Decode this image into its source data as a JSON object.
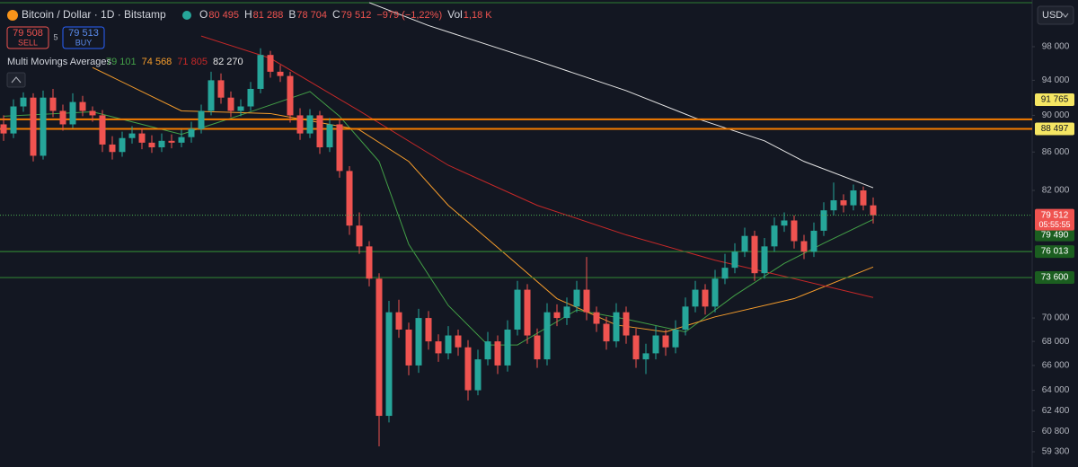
{
  "header": {
    "symbol": "Bitcoin / Dollar · 1D · Bitstamp",
    "ohlc": [
      {
        "key": "O",
        "value": "80 495"
      },
      {
        "key": "H",
        "value": "81 288"
      },
      {
        "key": "B",
        "value": "78 704"
      },
      {
        "key": "C",
        "value": "79 512"
      }
    ],
    "change": "−979 (−1,22%)",
    "volume_key": "Vol",
    "volume": "1,18 K",
    "sell": {
      "price": "79 508",
      "label": "SELL"
    },
    "spread": "5",
    "buy": {
      "price": "79 513",
      "label": "BUY"
    },
    "currency": "USD"
  },
  "chart_data": {
    "type": "candlestick",
    "log_scale": true,
    "up_color": "#26a69a",
    "down_color": "#ef5350",
    "ylim": [
      58190,
      103840
    ],
    "yticks": [
      {
        "value": 98000,
        "label": "98 000"
      },
      {
        "value": 94000,
        "label": "94 000"
      },
      {
        "value": 90000,
        "label": "90 000"
      },
      {
        "value": 86000,
        "label": "86 000"
      },
      {
        "value": 82000,
        "label": "82 000"
      },
      {
        "value": 70000,
        "label": "70 000"
      },
      {
        "value": 68000,
        "label": "68 000"
      },
      {
        "value": 66000,
        "label": "66 000"
      },
      {
        "value": 64000,
        "label": "64 000"
      },
      {
        "value": 62400,
        "label": "62 400"
      },
      {
        "value": 60800,
        "label": "60 800"
      },
      {
        "value": 59300,
        "label": "59 300"
      }
    ],
    "open": [
      89000,
      88000,
      91000,
      92000,
      85600,
      92000,
      90500,
      89000,
      91500,
      90500,
      90000,
      86800,
      86000,
      87500,
      88000,
      87000,
      86500,
      87200,
      87000,
      87600,
      88500,
      90500,
      94000,
      92000,
      90500,
      91000,
      93000,
      97000,
      95000,
      94500,
      90000,
      88000,
      90000,
      86500,
      89000,
      84000,
      78500,
      76500,
      73500,
      62000,
      70500,
      69000,
      66000,
      70000,
      68000,
      67000,
      68500,
      67500,
      64000,
      66500,
      68000,
      66000,
      69000,
      72500,
      68500,
      66500,
      70500,
      70000,
      71000,
      72500,
      70500,
      69500,
      68000,
      70500,
      68500,
      66500,
      67000,
      68500,
      67500,
      69000,
      71000,
      72500,
      71000,
      73500,
      74500,
      76000,
      77500,
      74000,
      76500,
      78500,
      79000,
      77000,
      76000,
      78000,
      80000,
      81000,
      80500,
      82000,
      80495
    ],
    "high": [
      90000,
      91800,
      92600,
      92500,
      92800,
      93000,
      91200,
      92500,
      92200,
      91000,
      90600,
      87700,
      88200,
      88800,
      88600,
      87800,
      88000,
      87900,
      88400,
      89300,
      91200,
      95000,
      94800,
      92700,
      91800,
      93800,
      97800,
      97500,
      95800,
      95000,
      90800,
      90700,
      90500,
      89700,
      89600,
      84500,
      79800,
      77000,
      74000,
      71500,
      71600,
      69600,
      70800,
      70600,
      68600,
      69300,
      69000,
      68100,
      67300,
      68800,
      68500,
      69800,
      73300,
      73000,
      69100,
      71300,
      71200,
      71800,
      73300,
      75500,
      71000,
      70100,
      71300,
      71000,
      69100,
      67800,
      69300,
      69000,
      69800,
      71800,
      73300,
      73000,
      74300,
      75800,
      76800,
      78300,
      78000,
      77300,
      79300,
      79800,
      79500,
      77600,
      78800,
      80800,
      82800,
      81600,
      82600,
      82400,
      81288
    ],
    "low": [
      87200,
      87500,
      90400,
      85000,
      85200,
      89800,
      88300,
      88600,
      89900,
      89300,
      86000,
      85200,
      85500,
      86900,
      86300,
      85900,
      86000,
      86400,
      86500,
      87000,
      88000,
      90000,
      91300,
      89800,
      89900,
      90500,
      92500,
      94300,
      93800,
      89200,
      87300,
      87500,
      85800,
      86000,
      83300,
      77600,
      75800,
      72800,
      59700,
      61500,
      68300,
      65200,
      65400,
      67300,
      66300,
      66500,
      66800,
      63200,
      63600,
      66000,
      65300,
      65500,
      68500,
      67800,
      65800,
      66000,
      69300,
      69400,
      70500,
      69800,
      68800,
      67300,
      67500,
      67800,
      65800,
      65300,
      66500,
      66800,
      67000,
      68500,
      70500,
      70300,
      70500,
      73000,
      74000,
      75500,
      73300,
      73500,
      76000,
      77900,
      76300,
      75300,
      75500,
      77500,
      79500,
      79800,
      80000,
      80000,
      78704
    ],
    "close": [
      88000,
      91000,
      92000,
      85600,
      92000,
      90500,
      89000,
      91500,
      90500,
      90000,
      86800,
      86000,
      87500,
      88000,
      87000,
      86500,
      87200,
      87000,
      87600,
      88500,
      90500,
      94000,
      92000,
      90500,
      91000,
      93000,
      97000,
      95000,
      94500,
      90000,
      88000,
      90000,
      86500,
      89000,
      84000,
      78500,
      76500,
      73500,
      62000,
      70500,
      69000,
      66000,
      70000,
      68000,
      67000,
      68500,
      67500,
      64000,
      66500,
      68000,
      66000,
      69000,
      72500,
      68500,
      66500,
      70500,
      70000,
      71000,
      72500,
      70500,
      69500,
      68000,
      70500,
      68500,
      66500,
      67000,
      68500,
      67500,
      69000,
      71000,
      72500,
      71000,
      73500,
      74500,
      76000,
      77500,
      74000,
      76500,
      78500,
      79000,
      77000,
      76000,
      78000,
      80000,
      81000,
      80500,
      82000,
      80491,
      79512
    ],
    "indicator": {
      "name": "Multi Movings Averages",
      "series": [
        {
          "color": "#43a047",
          "last_label": "79 101",
          "x": [
            0,
            9,
            18,
            25,
            31,
            34,
            38,
            41,
            45,
            49,
            52,
            58,
            63,
            69,
            74,
            79,
            83,
            88
          ],
          "values": [
            89900,
            90400,
            87900,
            90400,
            92700,
            89900,
            85000,
            76700,
            71100,
            67700,
            67700,
            70700,
            69900,
            68800,
            72000,
            74900,
            76800,
            79101
          ]
        },
        {
          "color": "#f59c2b",
          "last_label": "74 568",
          "x": [
            9,
            18,
            27,
            36,
            41,
            45,
            51,
            56,
            62,
            67,
            72,
            80,
            88
          ],
          "values": [
            95500,
            90500,
            90200,
            88400,
            85000,
            80500,
            75600,
            71700,
            69400,
            68800,
            70100,
            71700,
            74568
          ]
        },
        {
          "color": "#c62828",
          "last_label": "71 805",
          "x": [
            20,
            27,
            36,
            45,
            54,
            63,
            72,
            80,
            88
          ],
          "values": [
            99300,
            96600,
            90500,
            84600,
            80500,
            77600,
            75200,
            73500,
            71805
          ]
        },
        {
          "color": "#e6e6e6",
          "last_label": "82 270",
          "x": [
            37,
            43,
            54,
            63,
            70,
            77,
            81,
            88
          ],
          "values": [
            103500,
            100600,
            96300,
            92800,
            89700,
            87200,
            85000,
            82270
          ]
        }
      ]
    },
    "orange_lines": {
      "color": "#f57c00",
      "levels": [
        89560,
        {
          "value": 88497,
          "label": "88 497"
        }
      ]
    },
    "green_lines": {
      "color": "#2e7d32",
      "levels": [
        {
          "value": 76013,
          "label": "76 013"
        },
        {
          "value": 73600,
          "label": "73 600"
        }
      ]
    },
    "last_price": {
      "value": 79512,
      "label": "79 512",
      "countdown": "05:55:55"
    },
    "badges": [
      {
        "value": 91765,
        "label": "91 765",
        "color": "#f5e663"
      },
      {
        "value": 79490,
        "label": "79 490",
        "color": "#1b5e20"
      }
    ]
  }
}
